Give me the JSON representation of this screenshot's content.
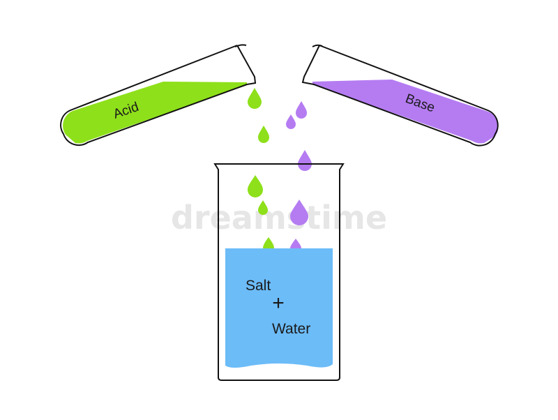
{
  "acid_tube": {
    "label": "Acid",
    "color": "#8ee01a"
  },
  "base_tube": {
    "label": "Base",
    "color": "#b57cf2"
  },
  "beaker": {
    "water_color": "#6cbcf8",
    "line1": "Salt",
    "line2": "+",
    "line3": "Water"
  },
  "watermark": "dreamstime"
}
